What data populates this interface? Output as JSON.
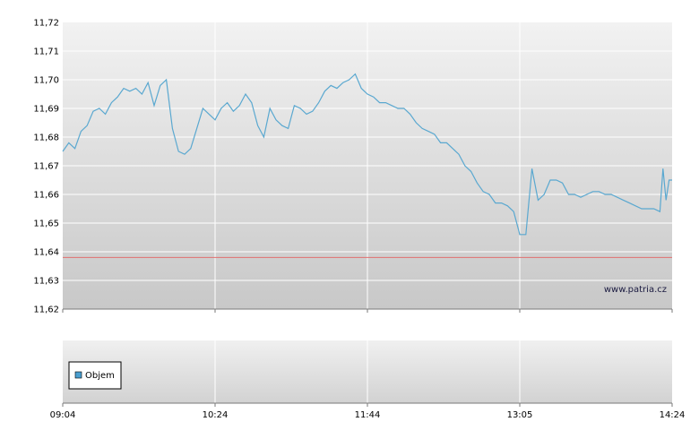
{
  "chart_data": [
    {
      "type": "line",
      "title": "",
      "xlabel": "",
      "ylabel": "",
      "ylim": [
        11.62,
        11.72
      ],
      "y_ticks": [
        "11,72",
        "11,71",
        "11,70",
        "11,69",
        "11,68",
        "11,67",
        "11,66",
        "11,65",
        "11,64",
        "11,63",
        "11,62"
      ],
      "x_tick_labels": [
        "09:04",
        "10:24",
        "11:44",
        "13:05",
        "14:24"
      ],
      "grid": true,
      "reference_line": {
        "value": 11.638,
        "color": "#e07070"
      },
      "watermark": "www.patria.cz",
      "line_color": "#5aa8d0",
      "series": [
        {
          "x": [
            0,
            0.01,
            0.02,
            0.03,
            0.04,
            0.05,
            0.06,
            0.07,
            0.08,
            0.09,
            0.1,
            0.11,
            0.12,
            0.13,
            0.14,
            0.15,
            0.16,
            0.17,
            0.18,
            0.19,
            0.2,
            0.21,
            0.22,
            0.23,
            0.24,
            0.25,
            0.26,
            0.27,
            0.28,
            0.29,
            0.3,
            0.31,
            0.32,
            0.33,
            0.34,
            0.35,
            0.36,
            0.37,
            0.38,
            0.39,
            0.4,
            0.41,
            0.42,
            0.43,
            0.44,
            0.45,
            0.46,
            0.47,
            0.48,
            0.49,
            0.5,
            0.51,
            0.52,
            0.53,
            0.54,
            0.55,
            0.56,
            0.57,
            0.58,
            0.59,
            0.6,
            0.61,
            0.62,
            0.63,
            0.64,
            0.65,
            0.66,
            0.67,
            0.68,
            0.69,
            0.7,
            0.71,
            0.72,
            0.73,
            0.74,
            0.75,
            0.76,
            0.77,
            0.78,
            0.79,
            0.8,
            0.81,
            0.82,
            0.83,
            0.84,
            0.85,
            0.86,
            0.87,
            0.88,
            0.89,
            0.9,
            0.91,
            0.92,
            0.93,
            0.94,
            0.95,
            0.96,
            0.97,
            0.98,
            0.985,
            0.99,
            0.995,
            1.0
          ],
          "values": [
            11.675,
            11.678,
            11.676,
            11.682,
            11.684,
            11.689,
            11.69,
            11.688,
            11.692,
            11.694,
            11.697,
            11.696,
            11.697,
            11.695,
            11.699,
            11.691,
            11.698,
            11.7,
            11.683,
            11.675,
            11.674,
            11.676,
            11.683,
            11.69,
            11.688,
            11.686,
            11.69,
            11.692,
            11.689,
            11.691,
            11.695,
            11.692,
            11.684,
            11.68,
            11.69,
            11.686,
            11.684,
            11.683,
            11.691,
            11.69,
            11.688,
            11.689,
            11.692,
            11.696,
            11.698,
            11.697,
            11.699,
            11.7,
            11.702,
            11.697,
            11.695,
            11.694,
            11.692,
            11.692,
            11.691,
            11.69,
            11.69,
            11.688,
            11.685,
            11.683,
            11.682,
            11.681,
            11.678,
            11.678,
            11.676,
            11.674,
            11.67,
            11.668,
            11.664,
            11.661,
            11.66,
            11.657,
            11.657,
            11.656,
            11.654,
            11.646,
            11.646,
            11.669,
            11.658,
            11.66,
            11.665,
            11.665,
            11.664,
            11.66,
            11.66,
            11.659,
            11.66,
            11.661,
            11.661,
            11.66,
            11.66,
            11.659,
            11.658,
            11.657,
            11.656,
            11.655,
            11.655,
            11.655,
            11.654,
            11.669,
            11.658,
            11.665,
            11.665
          ]
        }
      ]
    },
    {
      "type": "bar",
      "title": "",
      "legend": "Objem",
      "series": [],
      "x_tick_labels": [
        "09:04",
        "10:24",
        "11:44",
        "13:05",
        "14:24"
      ]
    }
  ]
}
